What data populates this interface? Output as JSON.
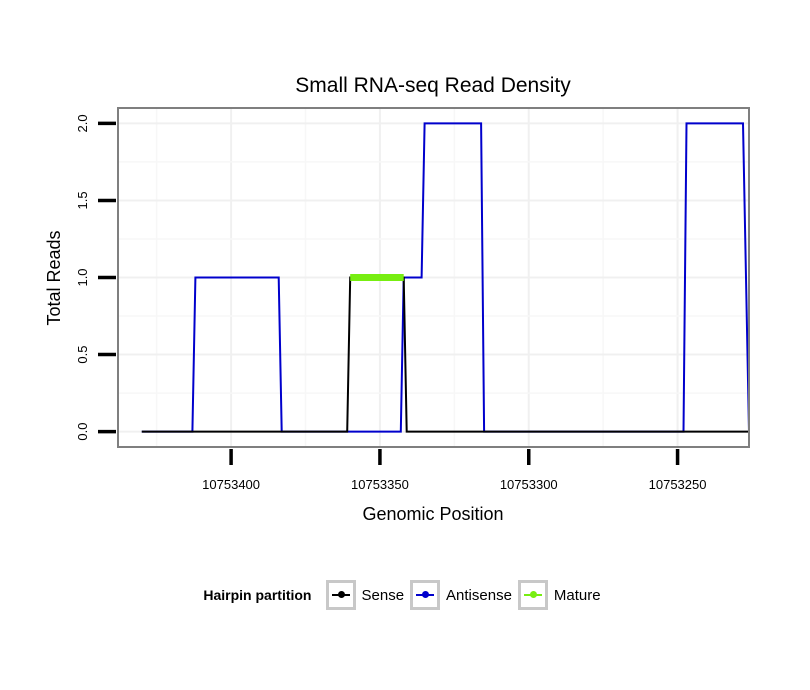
{
  "chart_data": {
    "type": "line",
    "title": "Small RNA-seq Read Density",
    "xlabel": "Genomic Position",
    "ylabel": "Total Reads",
    "x_reversed": true,
    "xlim": [
      10753438,
      10753226
    ],
    "ylim": [
      -0.1,
      2.1
    ],
    "xticks": [
      10753400,
      10753350,
      10753300,
      10753250
    ],
    "xtick_labels": [
      "10753400",
      "10753350",
      "10753300",
      "10753250"
    ],
    "yticks": [
      0.0,
      0.5,
      1.0,
      1.5,
      2.0
    ],
    "ytick_labels": [
      "0.0",
      "0.5",
      "1.0",
      "1.5",
      "2.0"
    ],
    "grid": true,
    "series": [
      {
        "name": "Sense",
        "color": "#000000",
        "x": [
          10753430,
          10753361,
          10753360,
          10753342,
          10753341,
          10753226
        ],
        "y": [
          0,
          0,
          1,
          1,
          0,
          0
        ]
      },
      {
        "name": "Antisense",
        "color": "#0000cc",
        "x": [
          10753430,
          10753413,
          10753412,
          10753384,
          10753383,
          10753361,
          10753343,
          10753342,
          10753336,
          10753335,
          10753316,
          10753315,
          10753248,
          10753247,
          10753228,
          10753227,
          10753226
        ],
        "y": [
          0,
          0,
          1,
          1,
          0,
          0,
          0,
          1,
          1,
          2,
          2,
          0,
          0,
          2,
          2,
          1,
          0
        ]
      },
      {
        "name": "Mature",
        "color": "#77ee11",
        "x": [
          10753360,
          10753342
        ],
        "y": [
          1,
          1
        ]
      }
    ],
    "legend": {
      "title": "Hairpin partition",
      "position": "bottom",
      "items": [
        "Sense",
        "Antisense",
        "Mature"
      ]
    }
  }
}
